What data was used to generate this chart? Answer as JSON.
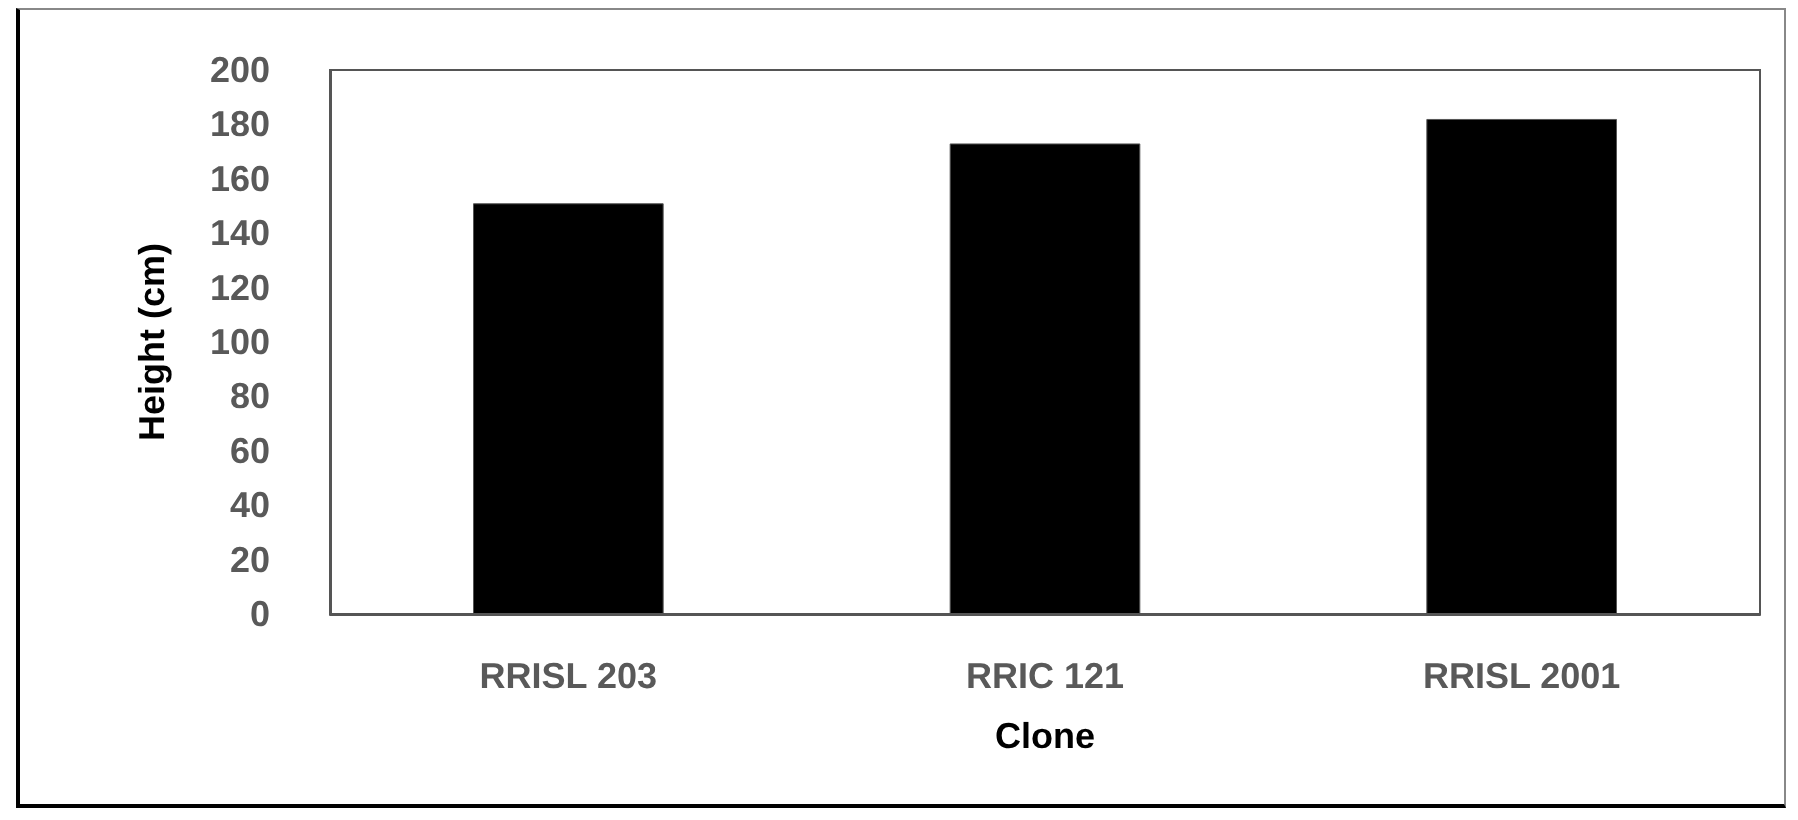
{
  "chart_data": {
    "type": "bar",
    "xlabel": "Clone",
    "ylabel": "Height (cm)",
    "categories": [
      "RRISL 203",
      "RRIC 121",
      "RRISL 2001"
    ],
    "values": [
      151,
      173,
      182
    ],
    "color": "#000000",
    "ylim": [
      0,
      200
    ],
    "yticks": [
      0,
      20,
      40,
      60,
      80,
      100,
      120,
      140,
      160,
      180,
      200
    ],
    "grid": false
  }
}
